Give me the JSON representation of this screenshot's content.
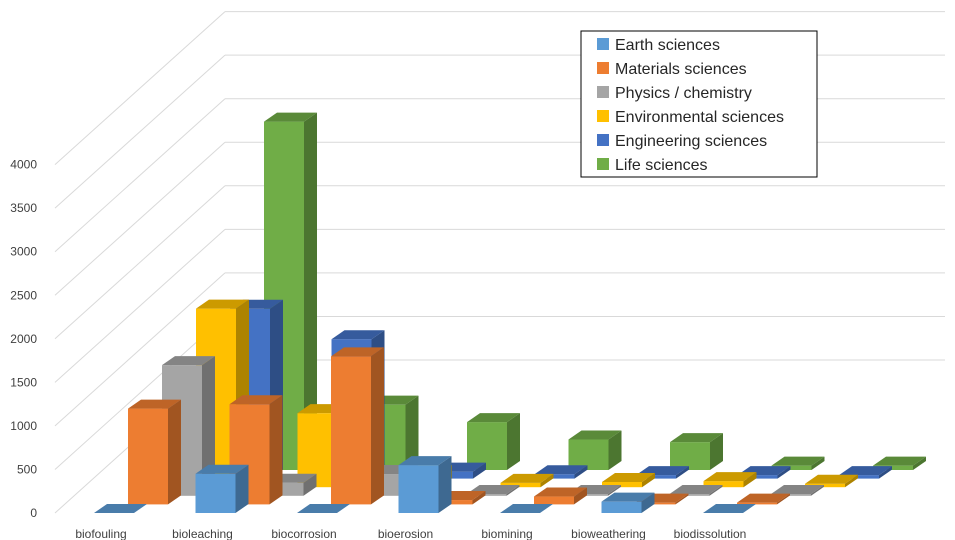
{
  "chart_data": {
    "type": "bar",
    "subtype": "3d-column",
    "title": "",
    "xlabel": "",
    "ylabel": "",
    "ylim": [
      0,
      4000
    ],
    "yticks": [
      0,
      500,
      1000,
      1500,
      2000,
      2500,
      3000,
      3500,
      4000
    ],
    "grid": true,
    "legend_position": "top-right",
    "categories": [
      "biofouling",
      "bioleaching",
      "biocorrosion",
      "bioerosion",
      "biomining",
      "bioweathering",
      "biodissolution"
    ],
    "series": [
      {
        "name": "Earth sciences",
        "color": "#5B9BD5",
        "values": [
          0,
          450,
          0,
          550,
          0,
          130,
          0
        ]
      },
      {
        "name": "Materials sciences",
        "color": "#ED7D31",
        "values": [
          1100,
          1150,
          1700,
          50,
          90,
          20,
          20
        ]
      },
      {
        "name": "Physics / chemistry",
        "color": "#A5A5A5",
        "values": [
          1500,
          150,
          250,
          20,
          20,
          20,
          20
        ]
      },
      {
        "name": "Environmental sciences",
        "color": "#FFC000",
        "values": [
          2050,
          850,
          150,
          50,
          60,
          70,
          40
        ]
      },
      {
        "name": "Engineering sciences",
        "color": "#4472C4",
        "values": [
          1950,
          1600,
          80,
          50,
          40,
          40,
          40
        ]
      },
      {
        "name": "Life sciences",
        "color": "#70AD47",
        "values": [
          4000,
          750,
          550,
          350,
          320,
          50,
          50
        ]
      }
    ]
  }
}
